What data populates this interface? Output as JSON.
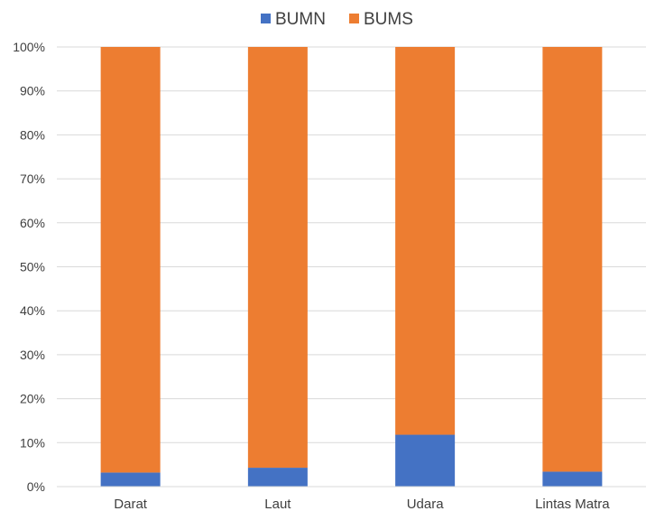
{
  "chart_data": {
    "type": "bar",
    "stacking": "percent",
    "title": "",
    "xlabel": "",
    "ylabel": "",
    "ylim": [
      0,
      100
    ],
    "yticks": [
      "0%",
      "10%",
      "20%",
      "30%",
      "40%",
      "50%",
      "60%",
      "70%",
      "80%",
      "90%",
      "100%"
    ],
    "grid": true,
    "legend_position": "top-center",
    "categories": [
      "Darat",
      "Laut",
      "Udara",
      "Lintas Matra"
    ],
    "series": [
      {
        "name": "BUMN",
        "color": "#4472c4",
        "values": [
          3.2,
          4.3,
          11.8,
          3.4
        ]
      },
      {
        "name": "BUMS",
        "color": "#ed7d31",
        "values": [
          96.8,
          95.7,
          88.2,
          96.6
        ]
      }
    ]
  }
}
